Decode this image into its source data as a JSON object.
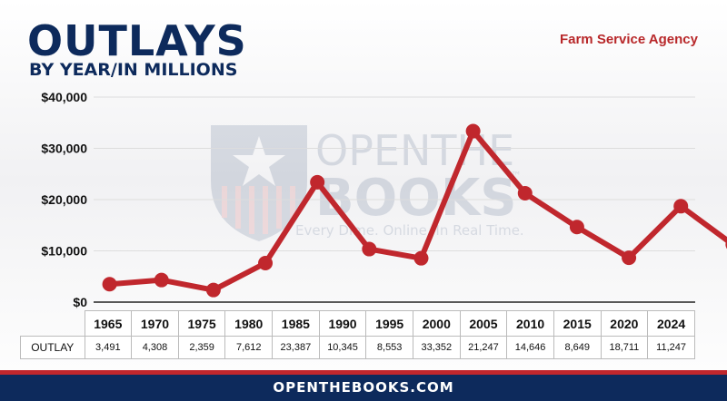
{
  "header": {
    "title": "OUTLAYS",
    "subtitle": "BY YEAR/IN MILLIONS",
    "agency": "Farm Service Agency"
  },
  "watermark": {
    "line1": "OPENTHE",
    "line2": "BOOKS",
    "tagline": "Every Dime. Online. In Real Time.",
    "tm": "™"
  },
  "chart_data": {
    "type": "line",
    "x": [
      "1965",
      "1970",
      "1975",
      "1980",
      "1985",
      "1990",
      "1995",
      "2000",
      "2005",
      "2010",
      "2015",
      "2020",
      "2024"
    ],
    "series": [
      {
        "values": [
          3491,
          4308,
          2359,
          7612,
          23387,
          10345,
          8553,
          33352,
          21247,
          14646,
          8649,
          18711,
          11247
        ]
      }
    ],
    "ylim": [
      0,
      40000
    ],
    "yticks": [
      0,
      10000,
      20000,
      30000,
      40000
    ],
    "ytick_labels": [
      "$0",
      "$10,000",
      "$20,000",
      "$30,000",
      "$40,000"
    ],
    "grid": true,
    "line_color": "#c0272d"
  },
  "table": {
    "row_label": "OUTLAY",
    "values": [
      "3,491",
      "4,308",
      "2,359",
      "7,612",
      "23,387",
      "10,345",
      "8,553",
      "33,352",
      "21,247",
      "14,646",
      "8,649",
      "18,711",
      "11,247"
    ]
  },
  "footer": {
    "text": "OPENTHEBOOKS.COM"
  },
  "colors": {
    "navy": "#0d2a5c",
    "red": "#c0272d",
    "agency_red": "#b8282a"
  }
}
